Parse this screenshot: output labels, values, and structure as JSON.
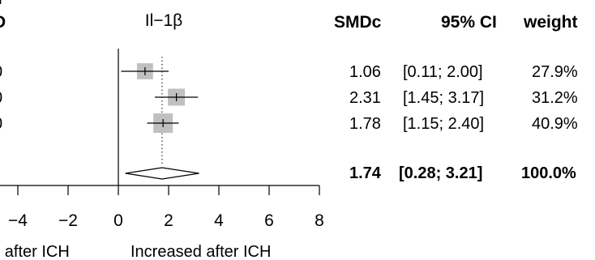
{
  "header": {
    "left_clipped": "D",
    "left_clipped_top": "r",
    "panel_title": "Il−1β",
    "col_smd": "SMDc",
    "col_ci": "95% CI",
    "col_weight": "weight"
  },
  "left_clipped_rows": [
    "0",
    "0",
    "0"
  ],
  "chart_data": {
    "type": "forest",
    "title": "Il−1β",
    "xlim": [
      -4,
      8
    ],
    "xticks": [
      "−4",
      "−2",
      "0",
      "2",
      "4",
      "6",
      "8"
    ],
    "xtick_values": [
      -4,
      -2,
      0,
      2,
      4,
      6,
      8
    ],
    "xlabel_left": "ed after ICH",
    "xlabel_right": "Increased after ICH",
    "reference_line": 0,
    "pooled_line": 1.74,
    "studies": [
      {
        "smd": 1.06,
        "lower": 0.11,
        "upper": 2.0,
        "weight": 27.9,
        "smd_text": "1.06",
        "ci_text": "[0.11; 2.00]",
        "weight_text": "27.9%"
      },
      {
        "smd": 2.31,
        "lower": 1.45,
        "upper": 3.17,
        "weight": 31.2,
        "smd_text": "2.31",
        "ci_text": "[1.45; 3.17]",
        "weight_text": "31.2%"
      },
      {
        "smd": 1.78,
        "lower": 1.15,
        "upper": 2.4,
        "weight": 40.9,
        "smd_text": "1.78",
        "ci_text": "[1.15; 2.40]",
        "weight_text": "40.9%"
      }
    ],
    "pooled": {
      "smd": 1.74,
      "lower": 0.28,
      "upper": 3.21,
      "smd_text": "1.74",
      "ci_text": "[0.28; 3.21]",
      "weight_text": "100.0%"
    },
    "colors": {
      "box": "#c0c0c0",
      "line": "#000000"
    }
  }
}
